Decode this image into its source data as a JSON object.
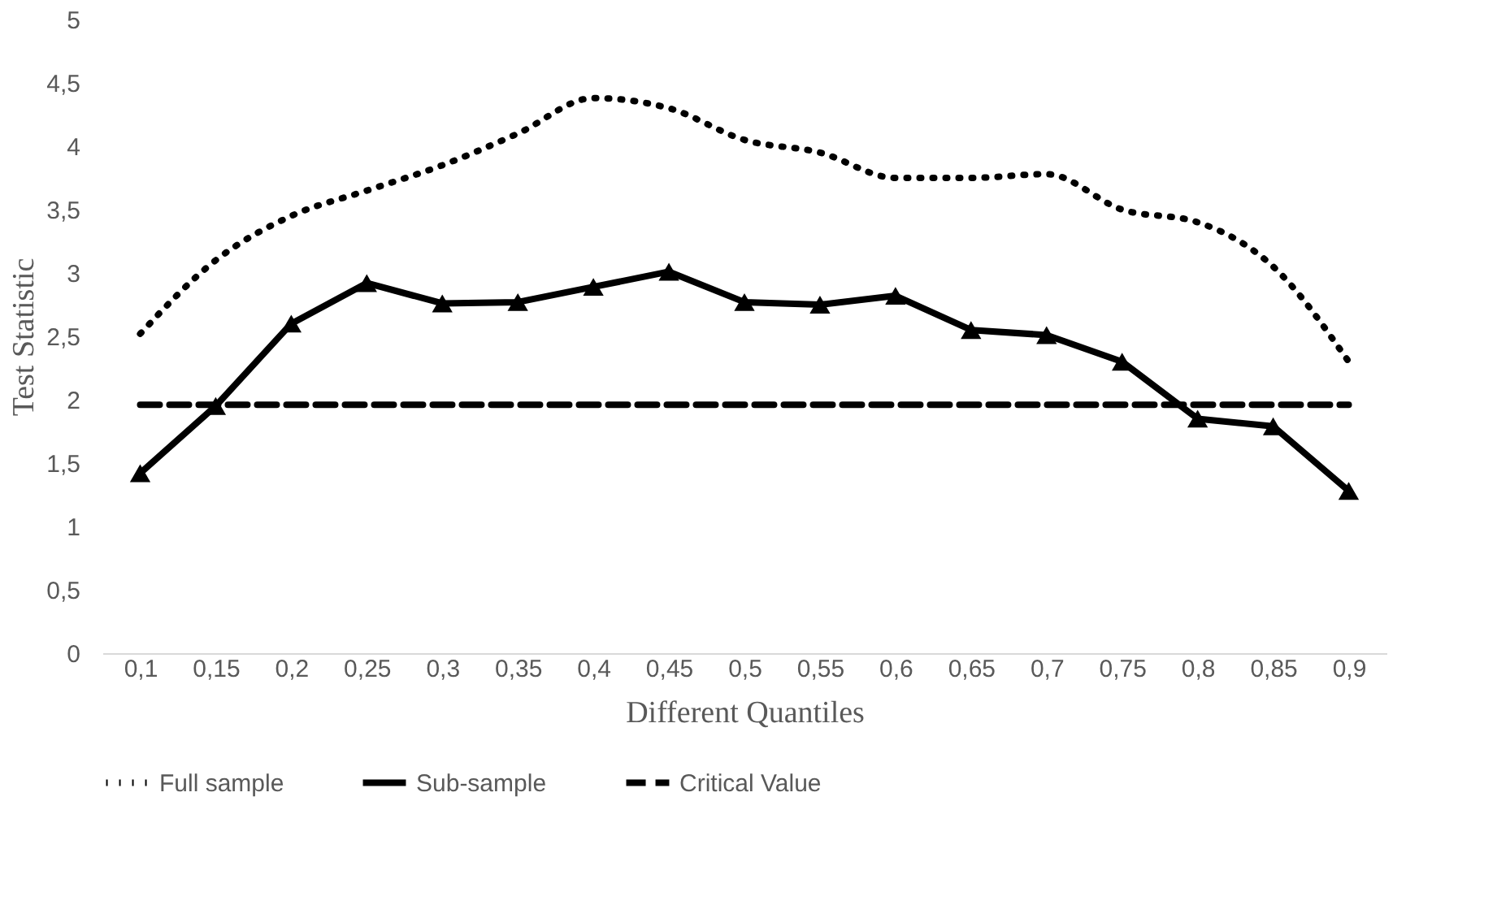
{
  "chart_data": {
    "type": "line",
    "xlabel": "Different Quantiles",
    "ylabel": "Test Statistic",
    "categories": [
      "0,1",
      "0,15",
      "0,2",
      "0,25",
      "0,3",
      "0,35",
      "0,4",
      "0,45",
      "0,5",
      "0,55",
      "0,6",
      "0,65",
      "0,7",
      "0,75",
      "0,8",
      "0,85",
      "0,9"
    ],
    "series": [
      {
        "name": "Full sample",
        "color": "#000000",
        "line_style": "dotted",
        "marker": "none",
        "values": [
          2.52,
          3.1,
          3.45,
          3.65,
          3.85,
          4.1,
          4.38,
          4.3,
          4.05,
          3.95,
          3.75,
          3.75,
          3.78,
          3.5,
          3.4,
          3.05,
          2.3
        ]
      },
      {
        "name": "Sub-sample",
        "color": "#000000",
        "line_style": "solid",
        "marker": "triangle",
        "values": [
          1.42,
          1.95,
          2.6,
          2.92,
          2.76,
          2.77,
          2.89,
          3.01,
          2.77,
          2.75,
          2.82,
          2.55,
          2.51,
          2.3,
          1.85,
          1.79,
          1.28
        ]
      },
      {
        "name": "Critical Value",
        "color": "#000000",
        "line_style": "dashed",
        "marker": "none",
        "values": [
          1.96,
          1.96,
          1.96,
          1.96,
          1.96,
          1.96,
          1.96,
          1.96,
          1.96,
          1.96,
          1.96,
          1.96,
          1.96,
          1.96,
          1.96,
          1.96,
          1.96
        ]
      }
    ],
    "ylim": [
      0,
      5
    ],
    "yticks": [
      0,
      {
        "value": 0.5,
        "label": "0,5"
      },
      1,
      {
        "value": 1.5,
        "label": "1,5"
      },
      2,
      {
        "value": 2.5,
        "label": "2,5"
      },
      3,
      {
        "value": 3.5,
        "label": "3,5"
      },
      4,
      {
        "value": 4.5,
        "label": "4,5"
      },
      5
    ],
    "grid": false,
    "legend": "bottom"
  }
}
